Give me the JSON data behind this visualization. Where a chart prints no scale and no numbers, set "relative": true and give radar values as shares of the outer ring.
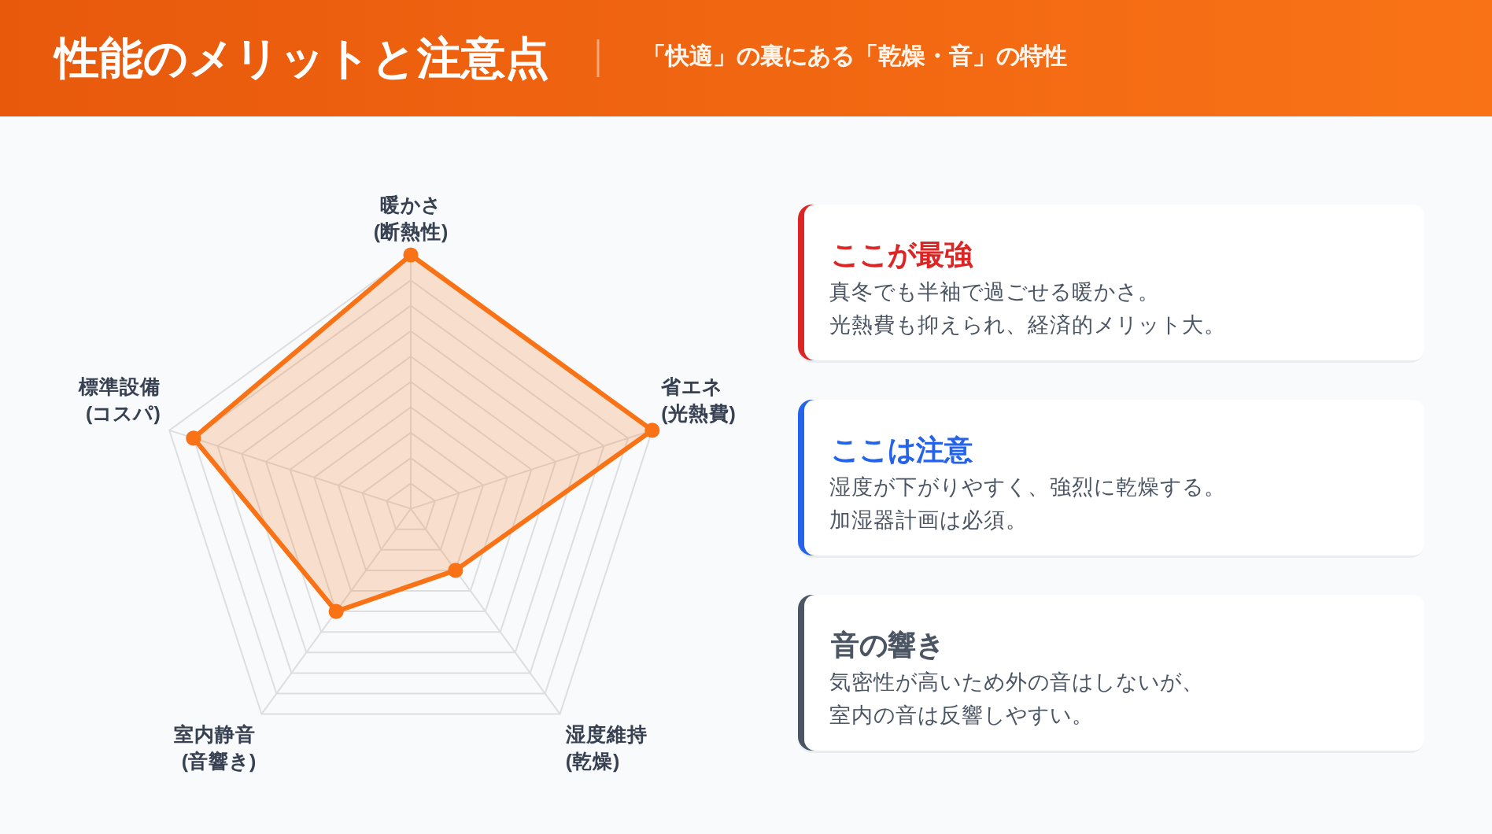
{
  "chart_data": [
    {
      "type": "radar",
      "title": "性能のメリットと注意点",
      "subtitle": "「快適」の裏にある「乾燥・音」の特性",
      "categories": [
        "暖かさ\n(断熱性)",
        "省エネ\n(光熱費)",
        "湿度維持\n(乾燥)",
        "室内静音\n(音響き)",
        "標準設備\n(コスパ)"
      ],
      "relative": true,
      "series": [
        {
          "color": "#f97316",
          "values": [
            1,
            1,
            0.3,
            0.5,
            0.9
          ]
        }
      ],
      "grid": true,
      "marker": "circle"
    },
    {
      "type": "other",
      "annotations": [
        "ここが最強",
        "真冬でも半袖で過ごせる暖かさ。光熱費も抑えられ、経済的メリット大。",
        "ここは注意",
        "湿度が下がりやすく、強烈に乾燥する。加湿器計画は必須。",
        "音の響き",
        "気密性が高いため外の音はしないが、室内の音は反響しやすい。"
      ],
      "colors": [
        "#dc2626",
        "#2563eb",
        "#4b5563"
      ]
    }
  ]
}
